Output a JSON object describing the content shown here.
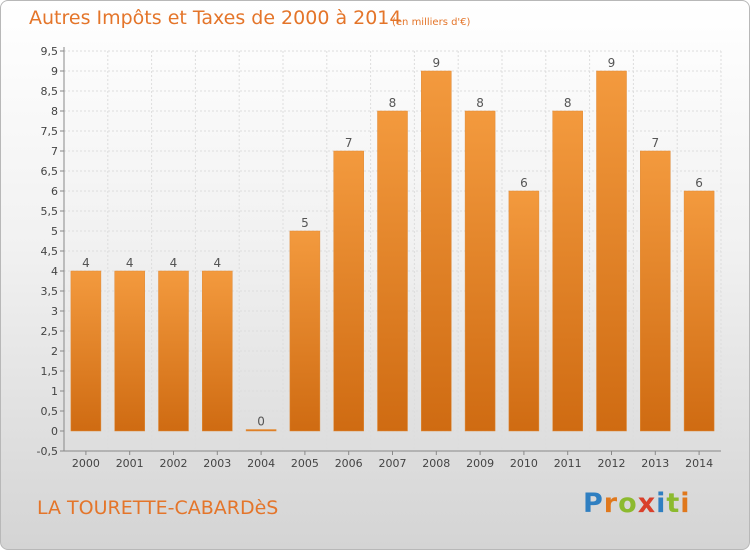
{
  "chart_data": {
    "type": "bar",
    "title": "Autres Impôts et Taxes de 2000 à 2014",
    "subtitle": "(en milliers d'€)",
    "categories": [
      "2000",
      "2001",
      "2002",
      "2003",
      "2004",
      "2005",
      "2006",
      "2007",
      "2008",
      "2009",
      "2010",
      "2011",
      "2012",
      "2013",
      "2014"
    ],
    "values": [
      4,
      4,
      4,
      4,
      0,
      5,
      7,
      8,
      9,
      8,
      6,
      8,
      9,
      7,
      6
    ],
    "ylim": [
      -0.5,
      9.5
    ],
    "yticks": [
      "-0,5",
      "0",
      "0,5",
      "1",
      "1,5",
      "2",
      "2,5",
      "3",
      "3,5",
      "4",
      "4,5",
      "5",
      "5,5",
      "6",
      "6,5",
      "7",
      "7,5",
      "8",
      "8,5",
      "9",
      "9,5"
    ],
    "grid": true,
    "bar_color": "#f39a3e",
    "bar_color_dark": "#cf6b12"
  },
  "footer": {
    "commune": "LA TOURETTE-CABARDèS",
    "logo": "Proxiti"
  }
}
